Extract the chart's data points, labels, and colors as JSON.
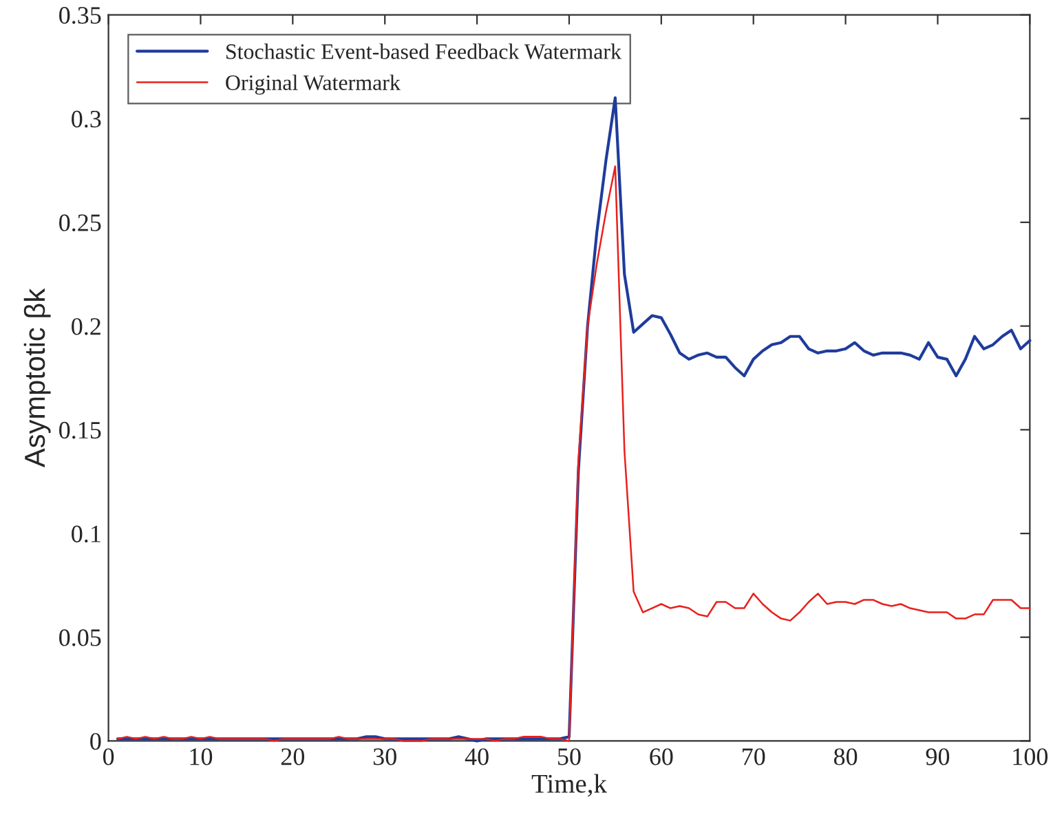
{
  "chart_data": {
    "type": "line",
    "xlabel": "Time,k",
    "ylabel": "Asymptotic βk",
    "x": [
      1,
      2,
      3,
      4,
      5,
      6,
      7,
      8,
      9,
      10,
      11,
      12,
      13,
      14,
      15,
      16,
      17,
      18,
      19,
      20,
      21,
      22,
      23,
      24,
      25,
      26,
      27,
      28,
      29,
      30,
      31,
      32,
      33,
      34,
      35,
      36,
      37,
      38,
      39,
      40,
      41,
      42,
      43,
      44,
      45,
      46,
      47,
      48,
      49,
      50,
      51,
      52,
      53,
      54,
      55,
      56,
      57,
      58,
      59,
      60,
      61,
      62,
      63,
      64,
      65,
      66,
      67,
      68,
      69,
      70,
      71,
      72,
      73,
      74,
      75,
      76,
      77,
      78,
      79,
      80,
      81,
      82,
      83,
      84,
      85,
      86,
      87,
      88,
      89,
      90,
      91,
      92,
      93,
      94,
      95,
      96,
      97,
      98,
      99,
      100
    ],
    "series": [
      {
        "name": "Stochastic Event-based Feedback Watermark",
        "color": "#1f3c9c",
        "values": [
          0.001,
          0.001,
          0.001,
          0.001,
          0.001,
          0.001,
          0.001,
          0.001,
          0.001,
          0.001,
          0.001,
          0.001,
          0.001,
          0.001,
          0.001,
          0.001,
          0.001,
          0.001,
          0.001,
          0.001,
          0.001,
          0.001,
          0.001,
          0.001,
          0.001,
          0.001,
          0.001,
          0.002,
          0.002,
          0.001,
          0.001,
          0.001,
          0.001,
          0.001,
          0.001,
          0.001,
          0.001,
          0.002,
          0.001,
          0.0,
          0.001,
          0.001,
          0.001,
          0.001,
          0.001,
          0.001,
          0.001,
          0.001,
          0.001,
          0.002,
          0.13,
          0.2,
          0.245,
          0.28,
          0.31,
          0.225,
          0.197,
          0.201,
          0.205,
          0.204,
          0.196,
          0.187,
          0.184,
          0.186,
          0.187,
          0.185,
          0.185,
          0.18,
          0.176,
          0.184,
          0.188,
          0.191,
          0.192,
          0.195,
          0.195,
          0.189,
          0.187,
          0.188,
          0.188,
          0.189,
          0.192,
          0.188,
          0.186,
          0.187,
          0.187,
          0.187,
          0.186,
          0.184,
          0.192,
          0.185,
          0.184,
          0.176,
          0.184,
          0.195,
          0.189,
          0.191,
          0.195,
          0.198,
          0.189,
          0.193
        ]
      },
      {
        "name": "Original Watermark",
        "color": "#e8201c",
        "values": [
          0.001,
          0.002,
          0.001,
          0.002,
          0.001,
          0.002,
          0.001,
          0.001,
          0.002,
          0.001,
          0.002,
          0.001,
          0.001,
          0.001,
          0.001,
          0.001,
          0.001,
          0.0,
          0.001,
          0.001,
          0.001,
          0.001,
          0.001,
          0.001,
          0.002,
          0.001,
          0.001,
          0.001,
          0.001,
          0.001,
          0.001,
          0.0,
          0.0,
          0.0,
          0.001,
          0.001,
          0.001,
          0.001,
          0.001,
          0.001,
          0.001,
          0.0,
          0.001,
          0.001,
          0.002,
          0.002,
          0.002,
          0.001,
          0.001,
          0.0,
          0.135,
          0.2,
          0.23,
          0.255,
          0.277,
          0.14,
          0.072,
          0.062,
          0.064,
          0.066,
          0.064,
          0.065,
          0.064,
          0.061,
          0.06,
          0.067,
          0.067,
          0.064,
          0.064,
          0.071,
          0.066,
          0.062,
          0.059,
          0.058,
          0.062,
          0.067,
          0.071,
          0.066,
          0.067,
          0.067,
          0.066,
          0.068,
          0.068,
          0.066,
          0.065,
          0.066,
          0.064,
          0.063,
          0.062,
          0.062,
          0.062,
          0.059,
          0.059,
          0.061,
          0.061,
          0.068,
          0.068,
          0.068,
          0.064,
          0.064
        ]
      }
    ],
    "xlim": [
      0,
      100
    ],
    "xticks": [
      0,
      10,
      20,
      30,
      40,
      50,
      60,
      70,
      80,
      90,
      100
    ],
    "ylim": [
      0,
      0.35
    ],
    "yticks": [
      0,
      0.05,
      0.1,
      0.15,
      0.2,
      0.25,
      0.3,
      0.35
    ],
    "grid": false,
    "legend": "top left",
    "marker": "none",
    "line_style": "solid"
  }
}
